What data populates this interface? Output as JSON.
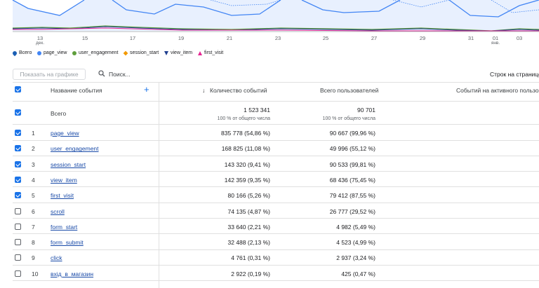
{
  "chart": {
    "xlabels": [
      {
        "day": "13",
        "month": "дек."
      },
      {
        "day": "15"
      },
      {
        "day": "17"
      },
      {
        "day": "19"
      },
      {
        "day": "21"
      },
      {
        "day": "23"
      },
      {
        "day": "25"
      },
      {
        "day": "27"
      },
      {
        "day": "29"
      },
      {
        "day": "31"
      },
      {
        "day": "01",
        "month": "янв."
      },
      {
        "day": "03"
      }
    ]
  },
  "legend": [
    {
      "name": "Всего",
      "color": "#1a5fb4",
      "shape": "drop"
    },
    {
      "name": "page_view",
      "color": "#4285f4",
      "shape": "dot"
    },
    {
      "name": "user_engagement",
      "color": "#5f9e3c",
      "shape": "dot"
    },
    {
      "name": "session_start",
      "color": "#f29900",
      "shape": "diamond"
    },
    {
      "name": "view_item",
      "color": "#1f3e8f",
      "shape": "tri"
    },
    {
      "name": "first_visit",
      "color": "#e52592",
      "shape": "tri"
    }
  ],
  "toolbar": {
    "show_on_chart": "Показать на графике",
    "search": "Поиск...",
    "rows_per_page": "Строк на странице:"
  },
  "table": {
    "headers": [
      "Название события",
      "Количество событий",
      "Всего пользователей",
      "Событий на активного пользователя"
    ],
    "total": {
      "label": "Всего",
      "events": "1 523 341",
      "events_note": "100 % от общего числа",
      "users": "90 701",
      "users_note": "100 % от общего числа"
    },
    "rows": [
      {
        "index": "1",
        "name": "page_view",
        "events": "835 778 (54,86 %)",
        "users": "90 667 (99,96 %)",
        "checked": true
      },
      {
        "index": "2",
        "name": "user_engagement",
        "events": "168 825 (11,08 %)",
        "users": "49 996 (55,12 %)",
        "checked": true
      },
      {
        "index": "3",
        "name": "session_start",
        "events": "143 320 (9,41 %)",
        "users": "90 533 (99,81 %)",
        "checked": true
      },
      {
        "index": "4",
        "name": "view_item",
        "events": "142 359 (9,35 %)",
        "users": "68 436 (75,45 %)",
        "checked": true
      },
      {
        "index": "5",
        "name": "first_visit",
        "events": "80 166 (5,26 %)",
        "users": "79 412 (87,55 %)",
        "checked": true
      },
      {
        "index": "6",
        "name": "scroll",
        "events": "74 135 (4,87 %)",
        "users": "26 777 (29,52 %)",
        "checked": false
      },
      {
        "index": "7",
        "name": "form_start",
        "events": "33 640 (2,21 %)",
        "users": "4 982 (5,49 %)",
        "checked": false
      },
      {
        "index": "8",
        "name": "form_submit",
        "events": "32 488 (2,13 %)",
        "users": "4 523 (4,99 %)",
        "checked": false
      },
      {
        "index": "9",
        "name": "click",
        "events": "4 761 (0,31 %)",
        "users": "2 937 (3,24 %)",
        "checked": false
      },
      {
        "index": "10",
        "name": "вхід_в_магазин",
        "events": "2 922 (0,19 %)",
        "users": "425 (0,47 %)",
        "checked": false
      }
    ]
  }
}
